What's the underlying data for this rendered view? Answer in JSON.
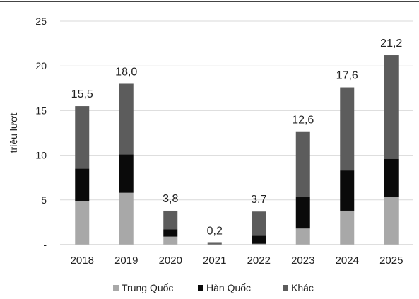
{
  "chart_data": {
    "type": "bar",
    "stacked": true,
    "categories": [
      "2018",
      "2019",
      "2020",
      "2021",
      "2022",
      "2023",
      "2024",
      "2025"
    ],
    "ylabel": "triệu lượt",
    "ylim": [
      0,
      25
    ],
    "yticks": [
      {
        "value": 0,
        "label": "-"
      },
      {
        "value": 5,
        "label": "5"
      },
      {
        "value": 10,
        "label": "10"
      },
      {
        "value": 15,
        "label": "15"
      },
      {
        "value": 20,
        "label": "20"
      },
      {
        "value": 25,
        "label": "25"
      }
    ],
    "grid": true,
    "legend_position": "bottom",
    "series": [
      {
        "name": "Trung Quốc",
        "color": "#a8a8a8",
        "values": [
          4.9,
          5.8,
          0.9,
          0.05,
          0.1,
          1.8,
          3.8,
          5.3
        ]
      },
      {
        "name": "Hàn Quốc",
        "color": "#0a0a0a",
        "values": [
          3.6,
          4.3,
          0.8,
          0.05,
          0.9,
          3.5,
          4.5,
          4.3
        ]
      },
      {
        "name": "Khác",
        "color": "#5c5c5c",
        "values": [
          7.0,
          7.9,
          2.1,
          0.1,
          2.7,
          7.3,
          9.3,
          11.6
        ]
      }
    ],
    "totals": [
      {
        "value": 15.5,
        "label": "15,5"
      },
      {
        "value": 18.0,
        "label": "18,0"
      },
      {
        "value": 3.8,
        "label": "3,8"
      },
      {
        "value": 0.2,
        "label": "0,2"
      },
      {
        "value": 3.7,
        "label": "3,7"
      },
      {
        "value": 12.6,
        "label": "12,6"
      },
      {
        "value": 17.6,
        "label": "17,6"
      },
      {
        "value": 21.2,
        "label": "21,2"
      }
    ]
  }
}
